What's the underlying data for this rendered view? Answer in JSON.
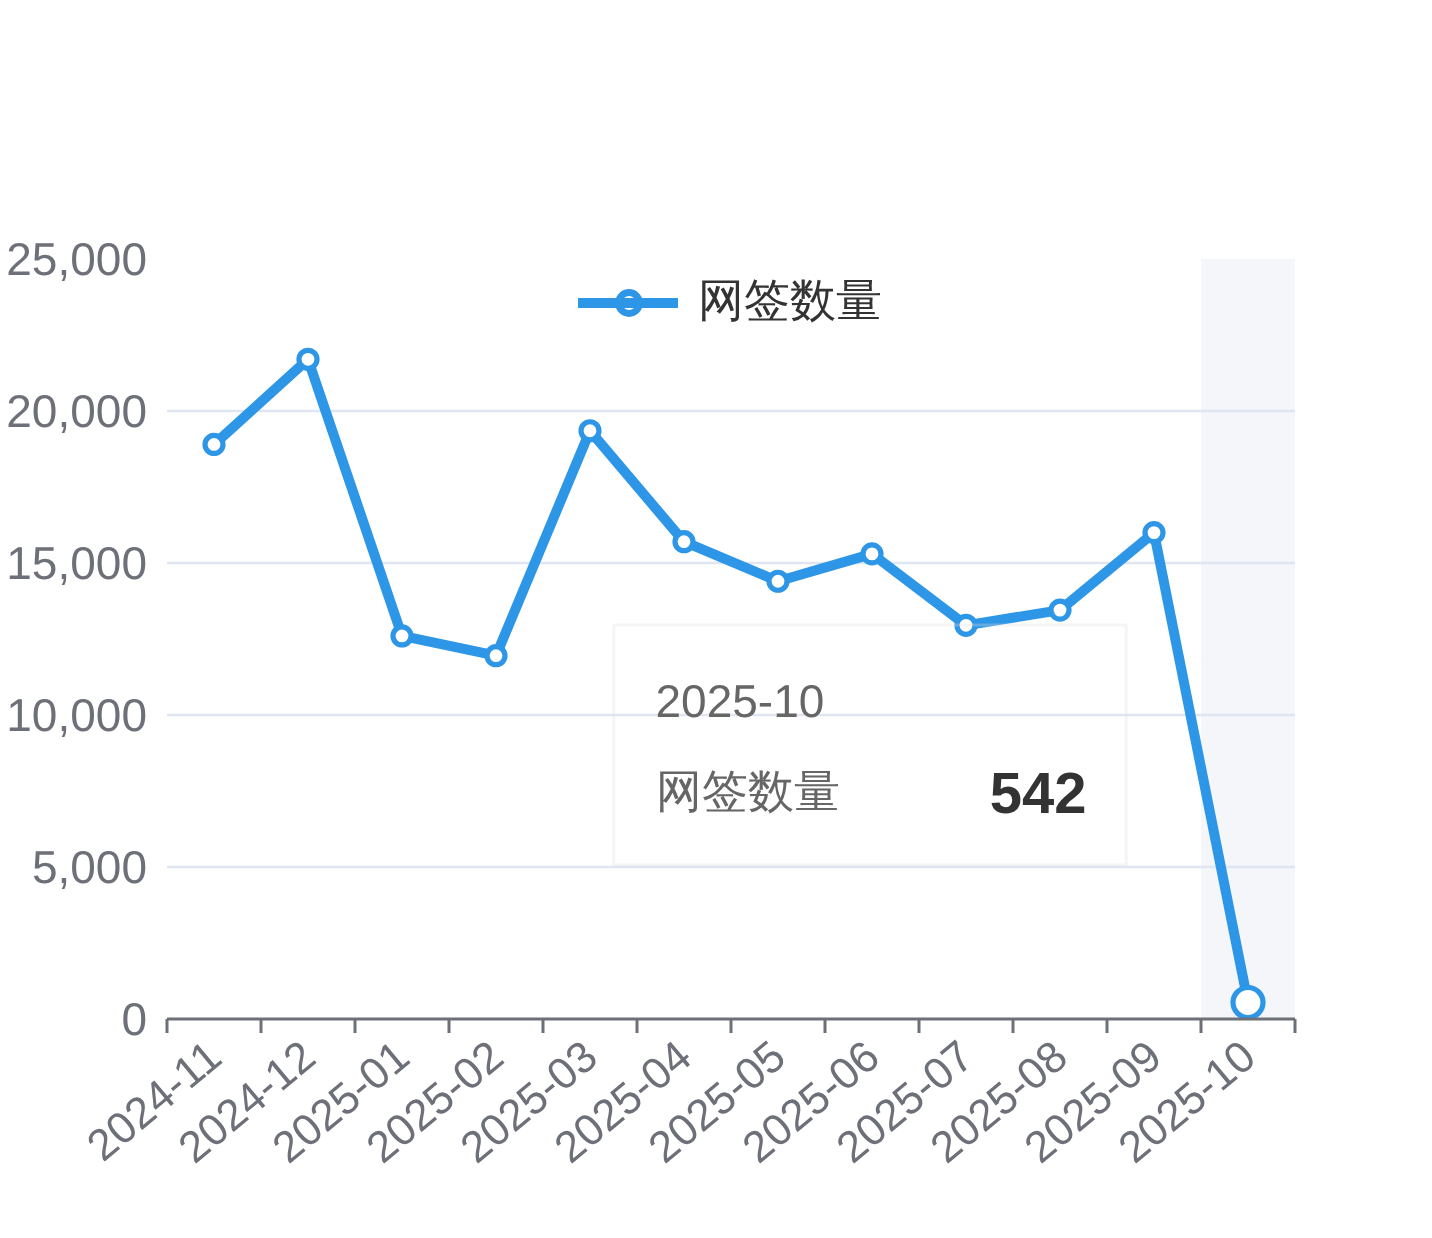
{
  "chart_data": {
    "type": "line",
    "categories": [
      "2024-11",
      "2024-12",
      "2025-01",
      "2025-02",
      "2025-03",
      "2025-04",
      "2025-05",
      "2025-06",
      "2025-07",
      "2025-08",
      "2025-09",
      "2025-10"
    ],
    "series": [
      {
        "name": "网签数量",
        "color": "#2d96e6",
        "values": [
          18900,
          21700,
          12600,
          11950,
          19350,
          15700,
          14400,
          15300,
          12950,
          13450,
          16000,
          542
        ]
      }
    ],
    "ylim": [
      0,
      25000
    ],
    "yticks": [
      0,
      {
        "value": 5000,
        "label": "5,000"
      },
      {
        "value": 10000,
        "label": "10,000"
      },
      {
        "value": 15000,
        "label": "15,000"
      },
      {
        "value": 20000,
        "label": "20,000"
      },
      {
        "value": 25000,
        "label": "25,000"
      }
    ],
    "grid": "y",
    "legend": "top",
    "marker": "circle",
    "line_style": "solid",
    "bands": [
      {
        "axis": "x",
        "from": "2025-10",
        "to": "2025-10",
        "color": "#f4f6fa"
      }
    ],
    "annotations": [
      "2025-10",
      "542"
    ]
  }
}
